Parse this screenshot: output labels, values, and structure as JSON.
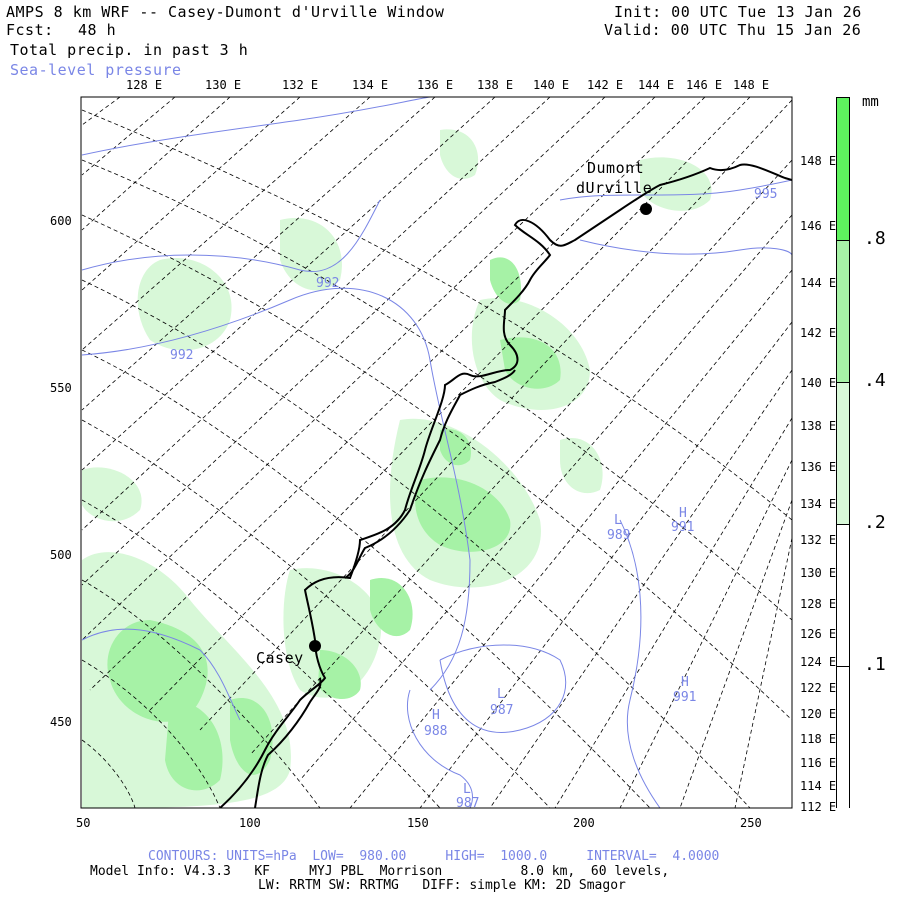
{
  "header": {
    "title": "AMPS 8 km WRF -- Casey-Dumont d'Urville Window",
    "fcst_label": "Fcst:",
    "fcst_value": "48 h",
    "field": "Total precip. in past 3 h",
    "overlay": "Sea-level pressure",
    "init": "Init: 00 UTC Tue 13 Jan 26",
    "valid": "Valid: 00 UTC Thu 15 Jan 26"
  },
  "axes": {
    "top_lon": [
      "128 E",
      "130 E",
      "132 E",
      "134 E",
      "136 E",
      "138 E",
      "140 E",
      "142 E",
      "144 E",
      "146 E",
      "148 E"
    ],
    "right_lon": [
      "148 E",
      "146 E",
      "144 E",
      "142 E",
      "140 E",
      "138 E",
      "136 E",
      "134 E",
      "132 E",
      "130 E",
      "128 E",
      "126 E",
      "124 E",
      "122 E",
      "120 E",
      "118 E",
      "116 E",
      "114 E",
      "112 E"
    ],
    "left_y": [
      "600",
      "550",
      "500",
      "450"
    ],
    "bottom_x": [
      "50",
      "100",
      "150",
      "200",
      "250"
    ]
  },
  "places": {
    "dumont_line1": "Dumont",
    "dumont_line2": "dUrville",
    "casey": "Casey"
  },
  "contour_labels": [
    {
      "text": "992"
    },
    {
      "text": "992"
    },
    {
      "text": "989",
      "prefix": "L"
    },
    {
      "text": "991",
      "prefix": "H"
    },
    {
      "text": "991",
      "prefix": "H"
    },
    {
      "text": "987",
      "prefix": "L"
    },
    {
      "text": "988",
      "prefix": "H"
    },
    {
      "text": "987",
      "prefix": "L"
    },
    {
      "text": "995"
    }
  ],
  "colorbar": {
    "unit": "mm",
    "labels": [
      ".8",
      ".4",
      ".2",
      ".1"
    ],
    "colors": {
      "c08": "#5ef25e",
      "c04": "#a6f2a6",
      "c02": "#d8f8d8",
      "c01": "#ffffff"
    }
  },
  "footer": {
    "contours": "CONTOURS: UNITS=hPa  LOW=  980.00     HIGH=  1000.0     INTERVAL=  4.0000",
    "model_info": "Model Info: V4.3.3   KF     MYJ PBL  Morrison          8.0 km,  60 levels,",
    "model_info2": "LW: RRTM SW: RRTMG   DIFF: simple KM: 2D Smagor"
  },
  "colors": {
    "contour": "#7a86e6",
    "green_dark": "#5ef25e",
    "green_mid": "#a6f2a6",
    "green_light": "#d8f8d8"
  }
}
